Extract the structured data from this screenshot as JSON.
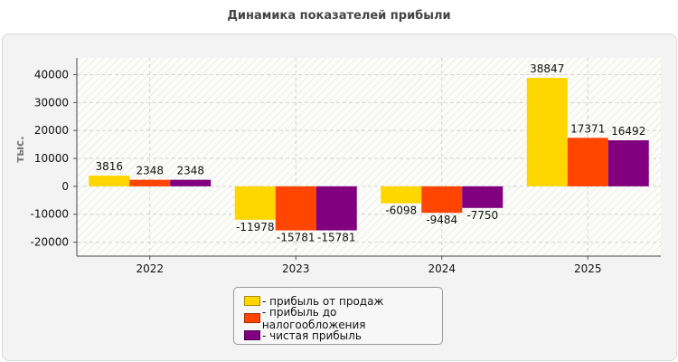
{
  "chart_data": {
    "type": "bar",
    "title": "Динамика показателей прибыли",
    "ylabel": "тыс.",
    "xlabel": "",
    "categories": [
      "2022",
      "2023",
      "2024",
      "2025"
    ],
    "ylim": [
      -25000,
      46000
    ],
    "yticks": [
      40000,
      30000,
      20000,
      10000,
      0,
      -10000,
      -20000
    ],
    "grid": true,
    "legend_position": "bottom",
    "series": [
      {
        "name": "- прибыль от продаж",
        "color": "#ffd700",
        "values": [
          3816,
          -11978,
          -6098,
          38847
        ]
      },
      {
        "name": "- прибыль до налогообложения",
        "color": "#ff4500",
        "values": [
          2348,
          -15781,
          -9484,
          17371
        ]
      },
      {
        "name": "- чистая прибыль",
        "color": "#800080",
        "values": [
          2348,
          -15781,
          -7750,
          16492
        ]
      }
    ]
  }
}
